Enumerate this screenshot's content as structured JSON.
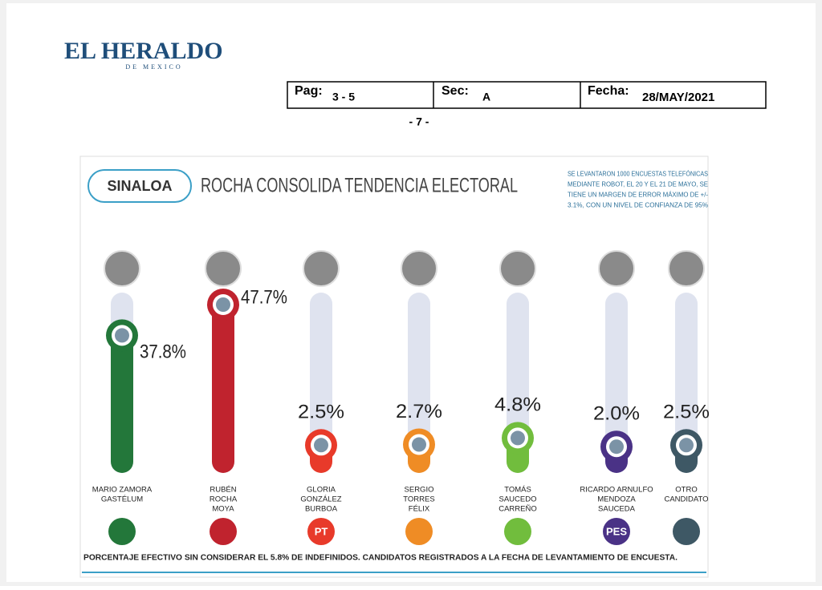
{
  "header": {
    "masthead": "EL HERALDO",
    "masthead_sub": "DE MEXICO",
    "pag_label": "Pag:",
    "pag": "3 - 5",
    "sec_label": "Sec:",
    "sec": "A",
    "fecha_label": "Fecha:",
    "fecha": "28/MAY/2021",
    "page_number": "- 7 -"
  },
  "chart_data": {
    "type": "bar",
    "badge": "SINALOA",
    "title": "ROCHA CONSOLIDA TENDENCIA ELECTORAL",
    "note": [
      "SE LEVANTARON 1000 ENCUESTAS TELEFÓNICAS",
      "MEDIANTE ROBOT, EL 20 Y EL 21 DE MAYO, SE",
      "TIENE UN MARGEN DE ERROR MÁXIMO DE +/-",
      "3.1%, CON UN NIVEL DE CONFIANZA DE 95%"
    ],
    "categories": [
      [
        "MARIO ZAMORA",
        "GASTÉLUM"
      ],
      [
        "RUBÉN",
        "ROCHA",
        "MOYA"
      ],
      [
        "GLORIA",
        "GONZÁLEZ",
        "BURBOA"
      ],
      [
        "SERGIO",
        "TORRES",
        "FÉLIX"
      ],
      [
        "TOMÁS",
        "SAUCEDO",
        "CARREÑO"
      ],
      [
        "RICARDO ARNULFO",
        "MENDOZA",
        "SAUCEDA"
      ],
      [
        "OTRO",
        "CANDIDATO"
      ]
    ],
    "values": [
      37.8,
      47.7,
      2.5,
      2.7,
      4.8,
      2.0,
      2.5
    ],
    "value_labels": [
      "37.8%",
      "47.7%",
      "2.5%",
      "2.7%",
      "4.8%",
      "2.0%",
      "2.5%"
    ],
    "colors": [
      "#23773a",
      "#c0232e",
      "#e83a2a",
      "#ef8c25",
      "#71bd3d",
      "#4a3286",
      "#3e5865"
    ],
    "party_labels": [
      null,
      null,
      "PT",
      null,
      null,
      "PES",
      null
    ],
    "footnote": "PORCENTAJE EFECTIVO SIN CONSIDERAR EL 5.8% DE INDEFINIDOS. CANDIDATOS REGISTRADOS A LA FECHA DE LEVANTAMIENTO DE ENCUESTA."
  }
}
